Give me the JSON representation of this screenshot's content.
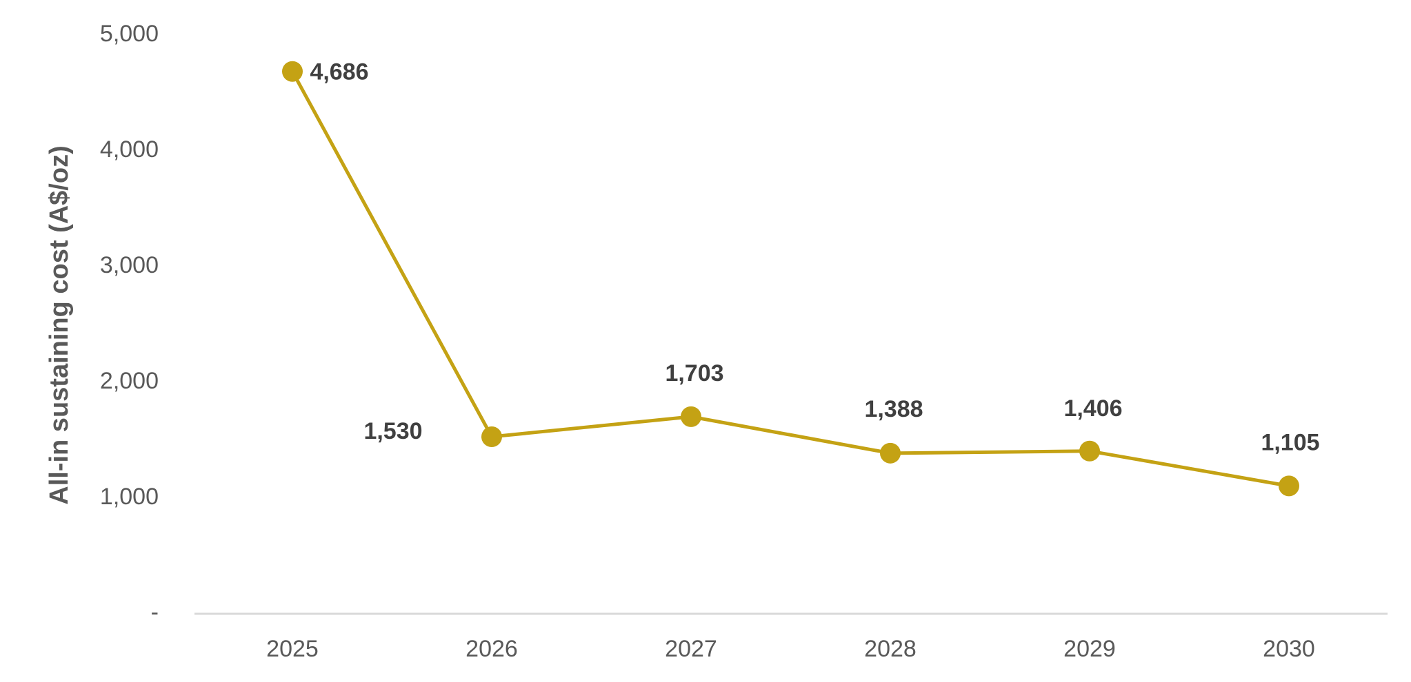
{
  "chart_data": {
    "type": "line",
    "title": "",
    "xlabel": "",
    "ylabel": "All-in sustaining cost (A$/oz)",
    "categories": [
      "2025",
      "2026",
      "2027",
      "2028",
      "2029",
      "2030"
    ],
    "series": [
      {
        "values": [
          4686,
          1530,
          1703,
          1388,
          1406,
          1105
        ],
        "data_labels": [
          "4,686",
          "1,530",
          "1,703",
          "1,388",
          "1,406",
          "1,105"
        ]
      }
    ],
    "yticks": [
      {
        "value": 0,
        "label": "-"
      },
      {
        "value": 1000,
        "label": "1,000"
      },
      {
        "value": 2000,
        "label": "2,000"
      },
      {
        "value": 3000,
        "label": "3,000"
      },
      {
        "value": 4000,
        "label": "4,000"
      },
      {
        "value": 5000,
        "label": "5,000"
      }
    ],
    "ylim": [
      0,
      5000
    ],
    "grid": false,
    "legend": "none",
    "colors": {
      "line": "#c4a214",
      "marker": "#c4a214",
      "axis": "#d9d9d9",
      "tick_text": "#595959",
      "data_label": "#404040"
    }
  }
}
